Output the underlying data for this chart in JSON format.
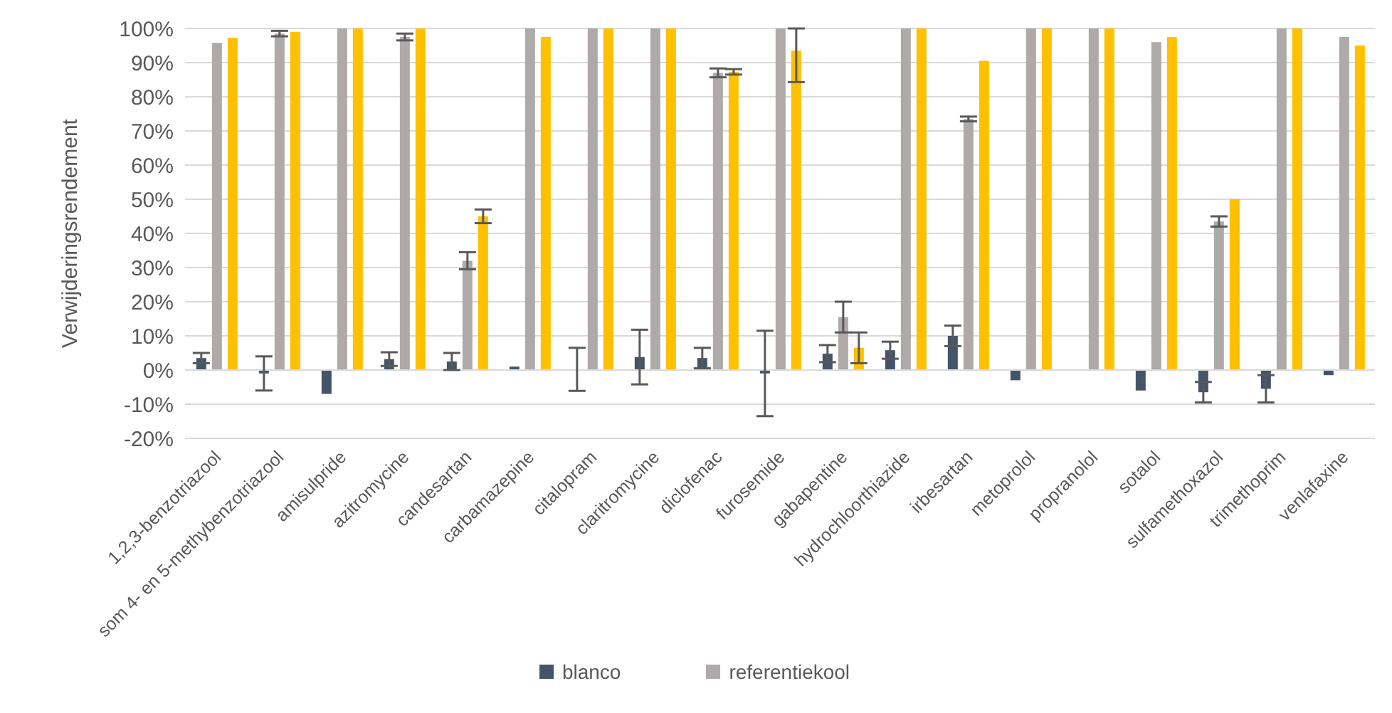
{
  "chart_data": {
    "type": "bar",
    "ylabel": "Verwijderingsrendement",
    "categories": [
      "1,2,3-benzotriazool",
      "som 4- en 5-methybenzotriazool",
      "amisulpride",
      "azitromycine",
      "candesartan",
      "carbamazepine",
      "citalopram",
      "claritromycine",
      "diclofenac",
      "furosemide",
      "gabapentine",
      "hydrochloorthiazide",
      "irbesartan",
      "metoprolol",
      "propranolol",
      "sotalol",
      "sulfamethoxazol",
      "trimethoprim",
      "venlafaxine"
    ],
    "series": [
      {
        "name": "blanco",
        "color": "#44546a",
        "values": [
          3.5,
          -1,
          -7,
          3.2,
          2.5,
          1,
          0.2,
          3.8,
          3.5,
          -1,
          4.8,
          5.8,
          10,
          -3,
          0,
          -6,
          -6.5,
          -5.5,
          -1.5
        ],
        "errors": [
          1.5,
          5,
          null,
          2,
          2.5,
          null,
          6.3,
          8,
          3,
          12.5,
          2.5,
          2.5,
          3,
          null,
          null,
          null,
          3,
          4,
          null
        ]
      },
      {
        "name": "referentiekool",
        "color": "#aeaaaa",
        "values": [
          95.8,
          98.5,
          100,
          97.5,
          32,
          100,
          100,
          100,
          87,
          100,
          15.5,
          100,
          73.5,
          100,
          100,
          96,
          43.5,
          100,
          97.5
        ],
        "errors": [
          null,
          0.8,
          null,
          1,
          2.5,
          null,
          null,
          null,
          1.3,
          null,
          4.5,
          null,
          0.7,
          null,
          null,
          null,
          1.5,
          null,
          null
        ]
      },
      {
        "color": "#ffc000",
        "values": [
          97.3,
          99,
          100,
          100,
          45,
          97.5,
          100,
          100,
          87.3,
          93.5,
          6.5,
          100,
          90.5,
          100,
          100,
          97.5,
          50,
          100,
          95
        ],
        "errors": [
          null,
          null,
          null,
          null,
          2,
          null,
          null,
          null,
          0.8,
          [
            84.3,
            100
          ],
          4.5,
          null,
          null,
          null,
          null,
          null,
          null,
          null,
          null
        ]
      }
    ],
    "ylim": [
      -20,
      100
    ],
    "yticks": [
      {
        "value": -20,
        "label": "-20%"
      },
      {
        "value": -10,
        "label": "-10%"
      },
      {
        "value": 0,
        "label": "0%"
      },
      {
        "value": 10,
        "label": "10%"
      },
      {
        "value": 20,
        "label": "20%"
      },
      {
        "value": 30,
        "label": "30%"
      },
      {
        "value": 40,
        "label": "40%"
      },
      {
        "value": 50,
        "label": "50%"
      },
      {
        "value": 60,
        "label": "60%"
      },
      {
        "value": 70,
        "label": "70%"
      },
      {
        "value": 80,
        "label": "80%"
      },
      {
        "value": 90,
        "label": "90%"
      },
      {
        "value": 100,
        "label": "100%"
      }
    ],
    "grid": "y",
    "legend": "bottom"
  }
}
